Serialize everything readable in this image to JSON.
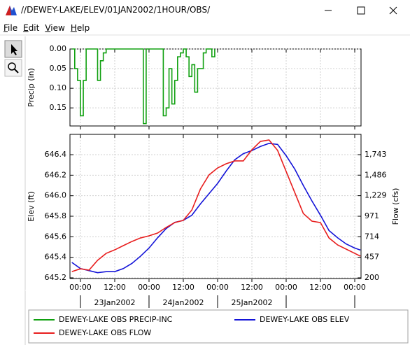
{
  "window": {
    "title": "//DEWEY-LAKE/ELEV/01JAN2002/1HOUR/OBS/",
    "menu": [
      "File",
      "Edit",
      "View",
      "Help"
    ]
  },
  "chart_data": [
    {
      "type": "step",
      "ylabel": "Precip (in)",
      "xlim": [
        "2002-01-22T20:20",
        "2002-01-27T02:12"
      ],
      "xticks": [
        "2002-01-23T00:00",
        "2002-01-23T12:00",
        "2002-01-24T00:00",
        "2002-01-24T12:00",
        "2002-01-25T00:00",
        "2002-01-25T12:00",
        "2002-01-26T00:00",
        "2002-01-26T12:00",
        "2002-01-27T00:00"
      ],
      "ylim": [
        0,
        0.196
      ],
      "inverted": true,
      "yticks": [
        {
          "value": 0,
          "label": "0.00"
        },
        {
          "value": 0.05,
          "label": "0.05"
        },
        {
          "value": 0.1,
          "label": "0.10"
        },
        {
          "value": 0.15,
          "label": "0.15"
        }
      ],
      "grid": true,
      "x": [
        "2002-01-22T21:00",
        "2002-01-22T22:00",
        "2002-01-22T23:00",
        "2002-01-23T00:00",
        "2002-01-23T01:00",
        "2002-01-23T02:00",
        "2002-01-23T06:00",
        "2002-01-23T07:00",
        "2002-01-23T08:00",
        "2002-01-23T09:00",
        "2002-01-23T22:00",
        "2002-01-23T23:00",
        "2002-01-24T05:00",
        "2002-01-24T06:00",
        "2002-01-24T07:00",
        "2002-01-24T08:00",
        "2002-01-24T09:00",
        "2002-01-24T10:00",
        "2002-01-24T11:00",
        "2002-01-24T12:00",
        "2002-01-24T13:00",
        "2002-01-24T14:00",
        "2002-01-24T15:00",
        "2002-01-24T16:00",
        "2002-01-24T17:00",
        "2002-01-24T18:00",
        "2002-01-24T19:00",
        "2002-01-24T20:00",
        "2002-01-24T22:00",
        "2002-01-24T23:00"
      ],
      "series": [
        {
          "name": "DEWEY-LAKE OBS PRECIP-INC",
          "color": "#10a010",
          "values": [
            0,
            0.05,
            0.08,
            0.17,
            0.08,
            0,
            0.08,
            0.03,
            0.01,
            0,
            0.19,
            0,
            0.17,
            0.15,
            0.05,
            0.14,
            0.08,
            0.02,
            0.01,
            0,
            0.02,
            0.07,
            0.04,
            0.11,
            0.05,
            0.05,
            0.01,
            0,
            0.02,
            0
          ]
        }
      ]
    },
    {
      "type": "line",
      "ylabel": "Elev (ft)",
      "y2label": "Flow (cfs)",
      "xlim": [
        "2002-01-22T20:20",
        "2002-01-27T02:12"
      ],
      "xticks": [
        {
          "value": "2002-01-23T00:00",
          "label": "00:00"
        },
        {
          "value": "2002-01-23T12:00",
          "label": "12:00"
        },
        {
          "value": "2002-01-24T00:00",
          "label": "00:00"
        },
        {
          "value": "2002-01-24T12:00",
          "label": "12:00"
        },
        {
          "value": "2002-01-25T00:00",
          "label": "00:00"
        },
        {
          "value": "2002-01-25T12:00",
          "label": "12:00"
        },
        {
          "value": "2002-01-26T00:00",
          "label": "00:00"
        },
        {
          "value": "2002-01-26T12:00",
          "label": "12:00"
        },
        {
          "value": "2002-01-27T00:00",
          "label": "00:00"
        }
      ],
      "day_labels": [
        {
          "value": "2002-01-23T12:00",
          "label": "23Jan2002"
        },
        {
          "value": "2002-01-24T12:00",
          "label": "24Jan2002"
        },
        {
          "value": "2002-01-25T12:00",
          "label": "25Jan2002"
        }
      ],
      "ylim": [
        645.193,
        646.598
      ],
      "yticks": [
        645.2,
        645.4,
        645.6,
        645.8,
        {
          "value": 646,
          "label": "646.0"
        },
        646.2,
        646.4
      ],
      "y2lim": [
        191,
        1997
      ],
      "y2ticks": [
        200,
        457,
        714,
        971,
        {
          "value": 1229,
          "label": "1,229"
        },
        {
          "value": 1486,
          "label": "1,486"
        },
        {
          "value": 1743,
          "label": "1,743"
        }
      ],
      "grid": true,
      "x": [
        "2002-01-22T21:00",
        "2002-01-23T00:00",
        "2002-01-23T03:00",
        "2002-01-23T06:00",
        "2002-01-23T09:00",
        "2002-01-23T12:00",
        "2002-01-23T15:00",
        "2002-01-23T18:00",
        "2002-01-23T21:00",
        "2002-01-24T00:00",
        "2002-01-24T03:00",
        "2002-01-24T06:00",
        "2002-01-24T09:00",
        "2002-01-24T12:00",
        "2002-01-24T15:00",
        "2002-01-24T18:00",
        "2002-01-24T21:00",
        "2002-01-25T00:00",
        "2002-01-25T03:00",
        "2002-01-25T06:00",
        "2002-01-25T09:00",
        "2002-01-25T12:00",
        "2002-01-25T15:00",
        "2002-01-25T18:00",
        "2002-01-25T21:00",
        "2002-01-26T00:00",
        "2002-01-26T03:00",
        "2002-01-26T06:00",
        "2002-01-26T09:00",
        "2002-01-26T12:00",
        "2002-01-26T15:00",
        "2002-01-26T18:00",
        "2002-01-26T21:00",
        "2002-01-27T00:00",
        "2002-01-27T02:00"
      ],
      "series": [
        {
          "name": "DEWEY-LAKE OBS ELEV",
          "color": "#1414d8",
          "values": [
            645.35,
            645.29,
            645.27,
            645.25,
            645.26,
            645.26,
            645.29,
            645.34,
            645.41,
            645.49,
            645.59,
            645.68,
            645.74,
            645.76,
            645.81,
            645.92,
            646.02,
            646.12,
            646.24,
            646.35,
            646.41,
            646.44,
            646.48,
            646.51,
            646.5,
            646.39,
            646.26,
            646.1,
            645.95,
            645.81,
            645.66,
            645.59,
            645.53,
            645.49,
            645.47
          ]
        },
        {
          "name": "DEWEY-LAKE OBS FLOW",
          "color": "#e81e1e",
          "axis": "y2",
          "values": [
            278,
            313,
            296,
            419,
            506,
            550,
            603,
            655,
            699,
            726,
            761,
            831,
            892,
            919,
            1050,
            1313,
            1489,
            1576,
            1629,
            1664,
            1664,
            1804,
            1909,
            1927,
            1796,
            1532,
            1269,
            1006,
            910,
            892,
            699,
            612,
            559,
            506,
            471
          ]
        }
      ]
    }
  ]
}
